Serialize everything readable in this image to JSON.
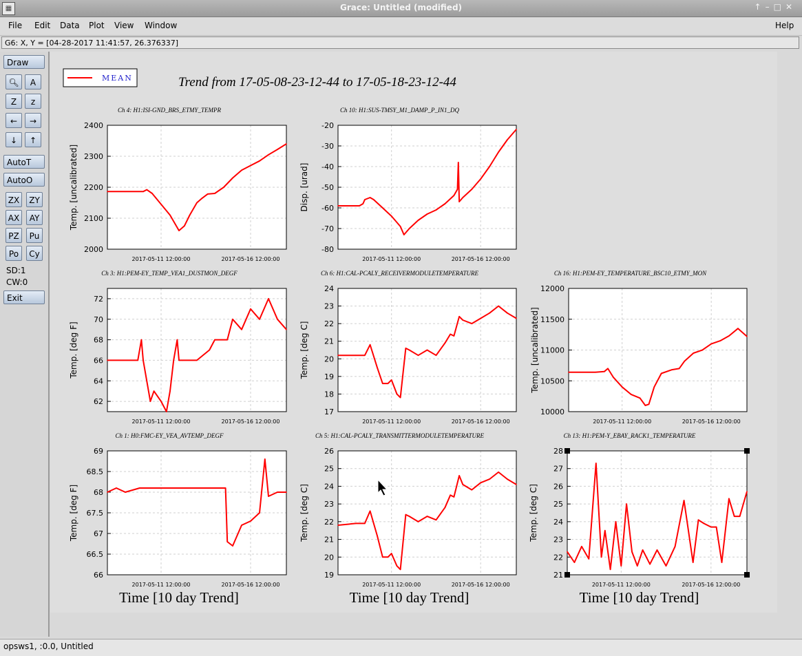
{
  "window": {
    "title": "Grace: Untitled (modified)"
  },
  "menu": {
    "file": "File",
    "edit": "Edit",
    "data": "Data",
    "plot": "Plot",
    "view": "View",
    "window": "Window",
    "help": "Help"
  },
  "locator": {
    "text": "G6: X, Y = [04-28-2017 11:41:57, 26.376337]"
  },
  "toolbar": {
    "draw": "Draw",
    "autot": "AutoT",
    "autoo": "AutoO",
    "zx": "ZX",
    "zy": "ZY",
    "ax": "AX",
    "ay": "AY",
    "pz": "PZ",
    "pu": "Pu",
    "po": "Po",
    "cy": "Cy",
    "sd": "SD:1",
    "cw": "CW:0",
    "exit": "Exit",
    "icons": [
      "zoom-icon",
      "text-icon",
      "autoscale-z-icon",
      "z-icon",
      "arrow-left-icon",
      "arrow-right-icon",
      "arrow-down-icon",
      "arrow-up-icon"
    ]
  },
  "status": {
    "text": "opsws1, :0.0, Untitled"
  },
  "colors": {
    "series": "#ff0000",
    "legend_text": "#2222cc"
  },
  "chart_data": [
    {
      "type": "line",
      "title": "Ch 4: H1:ISI-GND_BRS_ETMY_TEMPR",
      "ylabel": "Temp. [uncalibrated]",
      "xlabel": "",
      "ylim": [
        2000,
        2400
      ],
      "yticks": [
        2000,
        2100,
        2200,
        2300,
        2400
      ],
      "xticks": [
        "2017-05-11 12:00:00",
        "2017-05-16 12:00:00"
      ],
      "grid": true,
      "series": [
        {
          "name": "MEAN",
          "x": [
            0,
            1.0,
            2.0,
            2.2,
            2.5,
            3.0,
            3.5,
            3.8,
            4.0,
            4.3,
            4.6,
            5.0,
            5.3,
            5.6,
            6.0,
            6.5,
            7.0,
            7.5,
            8.0,
            8.5,
            9.0,
            9.5,
            10.0
          ],
          "y": [
            2186,
            2186,
            2186,
            2192,
            2180,
            2145,
            2110,
            2080,
            2060,
            2075,
            2110,
            2150,
            2165,
            2178,
            2180,
            2200,
            2230,
            2255,
            2270,
            2285,
            2305,
            2322,
            2340
          ]
        }
      ]
    },
    {
      "type": "line",
      "title": "Ch 10: H1:SUS-TMSY_M1_DAMP_P_IN1_DQ",
      "ylabel": "Disp. [urad]",
      "xlabel": "",
      "ylim": [
        -80,
        -20
      ],
      "yticks": [
        -80,
        -70,
        -60,
        -50,
        -40,
        -30,
        -20
      ],
      "xticks": [
        "2017-05-11 12:00:00",
        "2017-05-16 12:00:00"
      ],
      "grid": true,
      "series": [
        {
          "name": "MEAN",
          "x": [
            0,
            1.2,
            1.4,
            1.5,
            1.8,
            2.0,
            2.5,
            3.0,
            3.5,
            3.7,
            4.0,
            4.5,
            5.0,
            5.5,
            6.0,
            6.5,
            6.7,
            6.75,
            6.8,
            7.0,
            7.5,
            8.0,
            8.5,
            9.0,
            9.5,
            10.0
          ],
          "y": [
            -59,
            -59,
            -58,
            -56,
            -55,
            -56,
            -60,
            -64,
            -69,
            -73,
            -70,
            -66,
            -63,
            -61,
            -58,
            -54,
            -51,
            -38,
            -57,
            -55,
            -51,
            -46,
            -40,
            -33,
            -27,
            -22
          ]
        }
      ]
    },
    {
      "type": "line",
      "title": "Ch 3: H1:PEM-EY_TEMP_VEA1_DUSTMON_DEGF",
      "ylabel": "Temp. [deg F]",
      "xlabel": "",
      "ylim": [
        61,
        73
      ],
      "yticks": [
        62,
        64,
        66,
        68,
        70,
        72
      ],
      "xticks": [
        "2017-05-11 12:00:00",
        "2017-05-16 12:00:00"
      ],
      "grid": true,
      "series": [
        {
          "name": "MEAN",
          "x": [
            0,
            1.7,
            1.8,
            1.9,
            2.0,
            2.2,
            2.4,
            2.6,
            3.0,
            3.3,
            3.5,
            3.7,
            3.9,
            4.0,
            4.2,
            5.0,
            5.7,
            6.0,
            6.4,
            6.7,
            7.0,
            7.5,
            8.0,
            8.5,
            9.0,
            9.5,
            10.0
          ],
          "y": [
            66,
            66,
            67,
            68,
            66,
            64,
            62,
            63,
            62,
            61,
            63,
            66,
            68,
            66,
            66,
            66,
            67,
            68,
            68,
            68,
            70,
            69,
            71,
            70,
            72,
            70,
            69
          ]
        }
      ]
    },
    {
      "type": "line",
      "title": "Ch 6: H1:CAL-PCALY_RECEIVERMODULETEMPERATURE",
      "ylabel": "Temp. [deg C]",
      "xlabel": "",
      "ylim": [
        17,
        24
      ],
      "yticks": [
        17,
        18,
        19,
        20,
        21,
        22,
        23,
        24
      ],
      "xticks": [
        "2017-05-11 12:00:00",
        "2017-05-16 12:00:00"
      ],
      "grid": true,
      "series": [
        {
          "name": "MEAN",
          "x": [
            0,
            1.0,
            1.5,
            1.8,
            2.2,
            2.5,
            2.8,
            3.0,
            3.3,
            3.5,
            3.8,
            4.0,
            4.5,
            5.0,
            5.5,
            6.0,
            6.3,
            6.5,
            6.8,
            7.0,
            7.5,
            8.0,
            8.5,
            9.0,
            9.5,
            10.0
          ],
          "y": [
            20.2,
            20.2,
            20.2,
            20.8,
            19.5,
            18.6,
            18.6,
            18.8,
            18.0,
            17.8,
            20.6,
            20.5,
            20.2,
            20.5,
            20.2,
            20.9,
            21.4,
            21.3,
            22.4,
            22.2,
            22.0,
            22.3,
            22.6,
            23.0,
            22.6,
            22.3
          ]
        }
      ]
    },
    {
      "type": "line",
      "title": "Ch 16: H1:PEM-EY_TEMPERATURE_BSC10_ETMY_MON",
      "ylabel": "Temp. [uncalibrated]",
      "xlabel": "",
      "ylim": [
        10000,
        12000
      ],
      "yticks": [
        10000,
        10500,
        11000,
        11500,
        12000
      ],
      "xticks": [
        "2017-05-11 12:00:00",
        "2017-05-16 12:00:00"
      ],
      "grid": true,
      "series": [
        {
          "name": "MEAN",
          "x": [
            0,
            1.5,
            2.0,
            2.2,
            2.5,
            3.0,
            3.5,
            4.0,
            4.3,
            4.5,
            4.8,
            5.2,
            5.8,
            6.2,
            6.5,
            7.0,
            7.5,
            8.0,
            8.5,
            9.0,
            9.5,
            10.0
          ],
          "y": [
            10640,
            10640,
            10650,
            10700,
            10560,
            10400,
            10280,
            10220,
            10100,
            10120,
            10400,
            10620,
            10680,
            10700,
            10820,
            10950,
            11000,
            11100,
            11150,
            11230,
            11350,
            11220
          ]
        }
      ]
    },
    {
      "type": "line",
      "title": "Ch 1: H0:FMC-EY_VEA_AVTEMP_DEGF",
      "ylabel": "Temp. [deg F]",
      "xlabel": "Time [10 day Trend]",
      "ylim": [
        66,
        69
      ],
      "yticks": [
        66,
        66.5,
        67,
        67.5,
        68,
        68.5,
        69
      ],
      "xticks": [
        "2017-05-11 12:00:00",
        "2017-05-16 12:00:00"
      ],
      "grid": true,
      "series": [
        {
          "name": "MEAN",
          "x": [
            0,
            0.5,
            1.0,
            1.8,
            6.6,
            6.7,
            7.0,
            7.5,
            8.0,
            8.5,
            8.8,
            9.0,
            9.5,
            10.0
          ],
          "y": [
            68,
            68.1,
            68.0,
            68.1,
            68.1,
            66.8,
            66.7,
            67.2,
            67.3,
            67.5,
            68.8,
            67.9,
            68.0,
            68.0
          ]
        }
      ]
    },
    {
      "type": "line",
      "title": "Ch 5: H1:CAL-PCALY_TRANSMITTERMODULETEMPERATURE",
      "ylabel": "Temp. [deg C]",
      "xlabel": "Time [10 day Trend]",
      "ylim": [
        19,
        26
      ],
      "yticks": [
        19,
        20,
        21,
        22,
        23,
        24,
        25,
        26
      ],
      "xticks": [
        "2017-05-11 12:00:00",
        "2017-05-16 12:00:00"
      ],
      "grid": true,
      "series": [
        {
          "name": "MEAN",
          "x": [
            0,
            1.0,
            1.5,
            1.8,
            2.2,
            2.5,
            2.8,
            3.0,
            3.3,
            3.5,
            3.8,
            4.0,
            4.5,
            5.0,
            5.5,
            6.0,
            6.3,
            6.5,
            6.8,
            7.0,
            7.5,
            8.0,
            8.5,
            9.0,
            9.5,
            10.0
          ],
          "y": [
            21.8,
            21.9,
            21.9,
            22.6,
            21.2,
            20.0,
            20.0,
            20.2,
            19.5,
            19.3,
            22.4,
            22.3,
            22.0,
            22.3,
            22.1,
            22.8,
            23.5,
            23.4,
            24.6,
            24.1,
            23.8,
            24.2,
            24.4,
            24.8,
            24.4,
            24.1
          ]
        }
      ]
    },
    {
      "type": "line",
      "title": "Ch 13: H1:PEM-Y_EBAY_RACK1_TEMPERATURE",
      "ylabel": "Temp. [deg C]",
      "xlabel": "Time [10 day Trend]",
      "ylim": [
        21,
        28
      ],
      "yticks": [
        21,
        22,
        23,
        24,
        25,
        26,
        27,
        28
      ],
      "xticks": [
        "2017-05-11 12:00:00",
        "2017-05-16 12:00:00"
      ],
      "grid": true,
      "series": [
        {
          "name": "MEAN",
          "x": [
            0,
            0.4,
            0.8,
            1.2,
            1.6,
            1.9,
            2.1,
            2.4,
            2.7,
            3.0,
            3.3,
            3.6,
            3.9,
            4.2,
            4.6,
            5.0,
            5.5,
            6.0,
            6.5,
            7.0,
            7.3,
            7.6,
            8.0,
            8.3,
            8.6,
            9.0,
            9.3,
            9.6,
            10.0
          ],
          "y": [
            22.3,
            21.7,
            22.6,
            21.9,
            27.3,
            22.0,
            23.5,
            21.3,
            24.0,
            21.5,
            25.0,
            22.3,
            21.5,
            22.4,
            21.6,
            22.4,
            21.5,
            22.6,
            25.2,
            21.7,
            24.1,
            23.9,
            23.7,
            23.7,
            21.7,
            25.3,
            24.3,
            24.3,
            25.7
          ]
        }
      ]
    }
  ],
  "figure": {
    "title": "Trend from 17-05-08-23-12-44 to 17-05-18-23-12-44",
    "legend": "MEAN"
  }
}
